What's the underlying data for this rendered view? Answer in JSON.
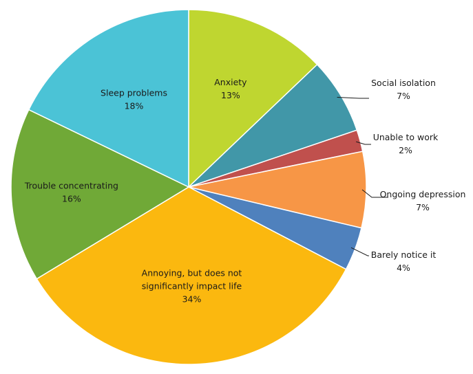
{
  "chart_data": {
    "type": "pie",
    "slices": [
      {
        "label": [
          "Anxiety"
        ],
        "value": 13,
        "value_label": "13%",
        "color": "#bfd630"
      },
      {
        "label": [
          "Social isolation"
        ],
        "value": 7,
        "value_label": "7%",
        "color": "#4197a8"
      },
      {
        "label": [
          "Unable to work"
        ],
        "value": 2,
        "value_label": "2%",
        "color": "#c0504d"
      },
      {
        "label": [
          "Ongoing depression"
        ],
        "value": 7,
        "value_label": "7%",
        "color": "#f79646"
      },
      {
        "label": [
          "Barely notice it"
        ],
        "value": 4,
        "value_label": "4%",
        "color": "#4f81bd"
      },
      {
        "label": [
          "Annoying, but does not",
          "significantly impact life"
        ],
        "value": 34,
        "value_label": "34%",
        "color": "#fbb80f"
      },
      {
        "label": [
          "Trouble concentrating"
        ],
        "value": 16,
        "value_label": "16%",
        "color": "#70a937"
      },
      {
        "label": [
          "Sleep problems"
        ],
        "value": 18,
        "value_label": "18%",
        "color": "#4bc3d6"
      }
    ],
    "start_angle_deg": 0,
    "direction": "clockwise"
  }
}
